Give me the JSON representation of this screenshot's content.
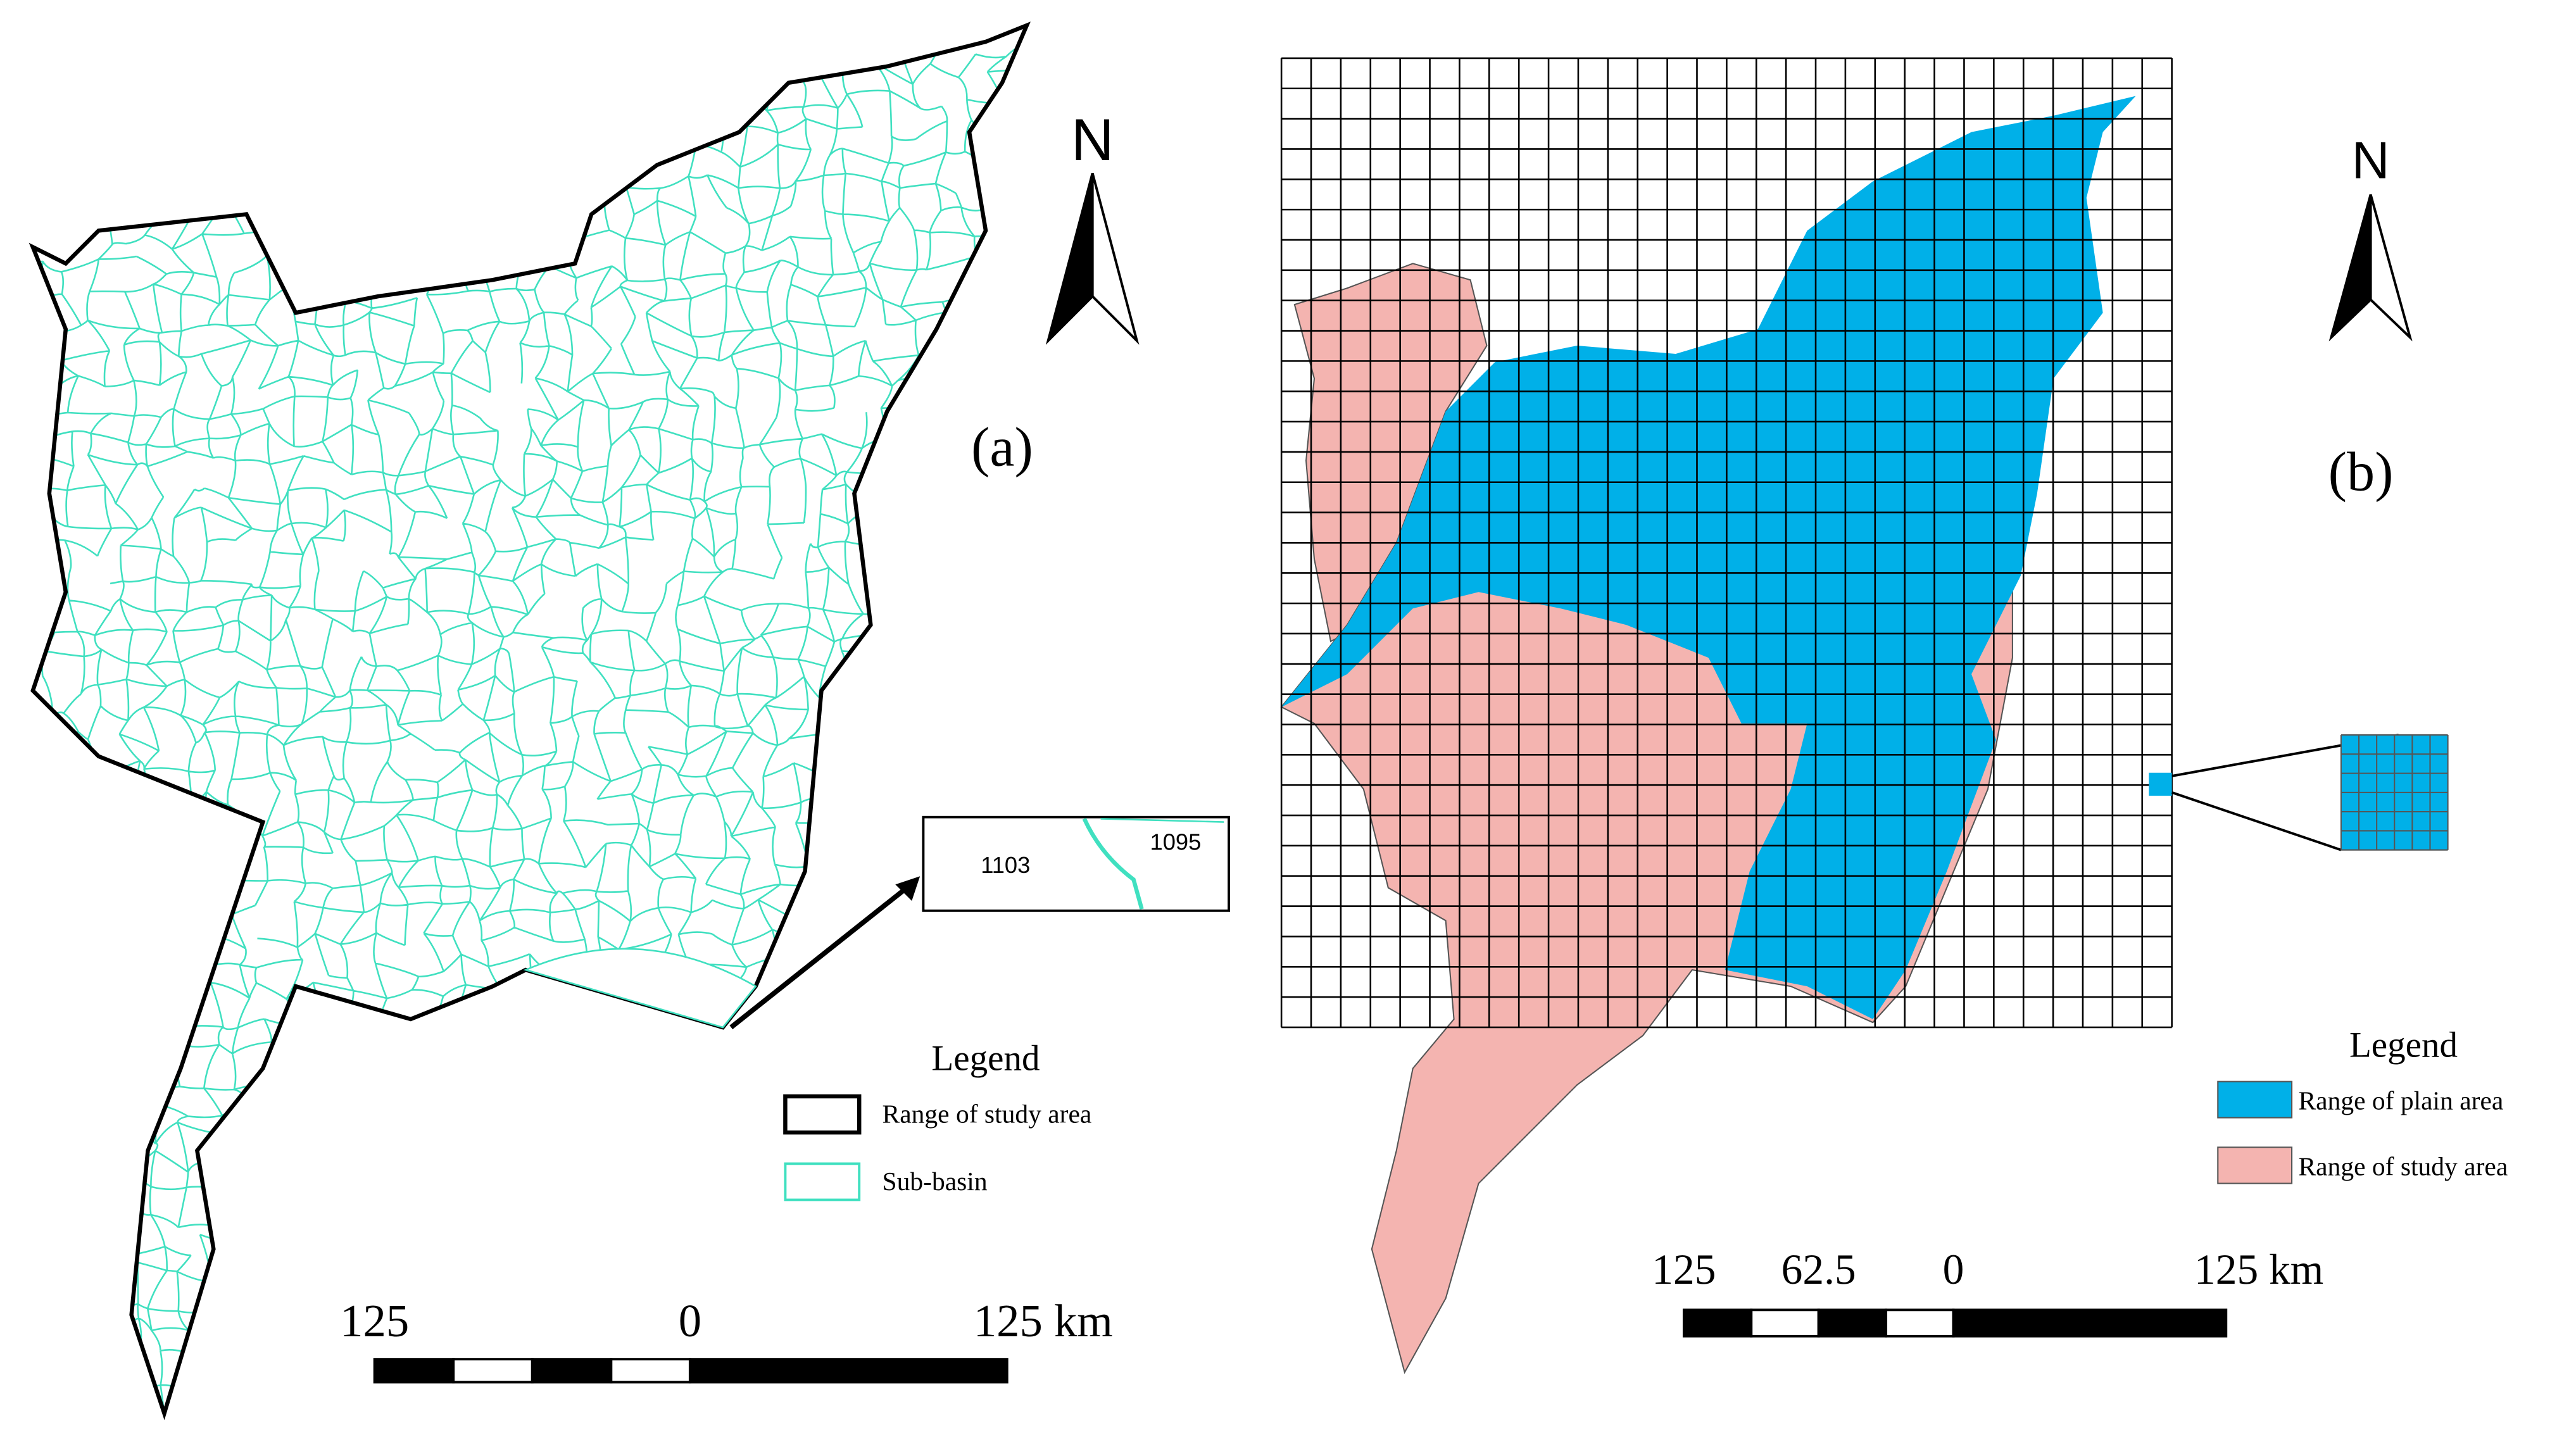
{
  "panels": [
    {
      "label": "(a)",
      "north": "N",
      "legend": {
        "title": "Legend",
        "items": [
          "Range of study area",
          "Sub-basin"
        ]
      },
      "scale_labels": [
        "125",
        "0",
        "125 km"
      ],
      "inset_labels": [
        "1103",
        "1095"
      ]
    },
    {
      "label": "(b)",
      "north": "N",
      "legend": {
        "title": "Legend",
        "items": [
          "Range of plain area",
          "Range of study area"
        ]
      },
      "scale_labels": [
        "125",
        "62.5",
        "0",
        "125 km"
      ]
    }
  ]
}
